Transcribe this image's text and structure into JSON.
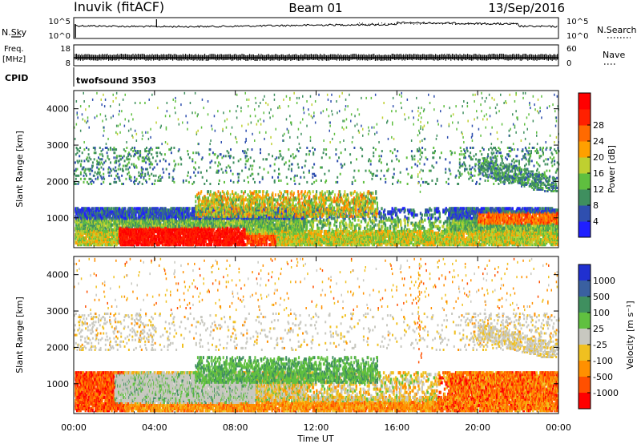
{
  "header": {
    "radar": "Inuvik (fitACF)",
    "beam": "Beam 01",
    "date": "13/Sep/2016"
  },
  "top_panels": {
    "nsky_label": "N.Sky",
    "nsearch_label": "N.Search",
    "nsky_ticks": [
      "10^5",
      "10^0"
    ],
    "nsearch_ticks": [
      "10^5",
      "10^0"
    ],
    "freq_label_1": "Freq.",
    "freq_label_2": "[MHz]",
    "freq_ticks": [
      "18",
      "8"
    ],
    "nave_label": "Nave",
    "nave_ticks": [
      "60",
      "0"
    ],
    "cpid_label": "CPID",
    "cpid_value": "twofsound 3503"
  },
  "x_axis": {
    "label": "Time UT",
    "ticks": [
      "00:00",
      "04:00",
      "08:00",
      "12:00",
      "16:00",
      "20:00",
      "00:00"
    ]
  },
  "colors": {
    "power": [
      "#1f1fff",
      "#2f4faf",
      "#3f8f5f",
      "#5fbf3f",
      "#bfd030",
      "#ffa000",
      "#ff6a00",
      "#ff2000",
      "#ff0000"
    ],
    "velocity": [
      "#2030d0",
      "#3a60a0",
      "#3f8f5f",
      "#60c040",
      "#c8c8c0",
      "#f0c020",
      "#ff9000",
      "#ff5000",
      "#ff0000"
    ]
  },
  "chart_data": [
    {
      "type": "heatmap",
      "panel": "power",
      "xlabel": "",
      "ylabel": "Slant Range [km]",
      "xlim": [
        0,
        24
      ],
      "ylim": [
        180,
        4500
      ],
      "y_ticks": [
        "1000",
        "2000",
        "3000",
        "4000"
      ],
      "colorbar": {
        "label": "Power [dB]",
        "ticks": [
          "4",
          "8",
          "12",
          "16",
          "20",
          "24",
          "28"
        ]
      }
    },
    {
      "type": "heatmap",
      "panel": "velocity",
      "xlabel": "Time UT",
      "ylabel": "Slant Range [km]",
      "xlim": [
        0,
        24
      ],
      "ylim": [
        180,
        4500
      ],
      "y_ticks": [
        "1000",
        "2000",
        "3000",
        "4000"
      ],
      "colorbar": {
        "label": "Velocity [m s⁻¹]",
        "ticks": [
          "1000",
          "500",
          "100",
          "25",
          "-25",
          "-100",
          "-500",
          "-1000"
        ]
      }
    }
  ]
}
